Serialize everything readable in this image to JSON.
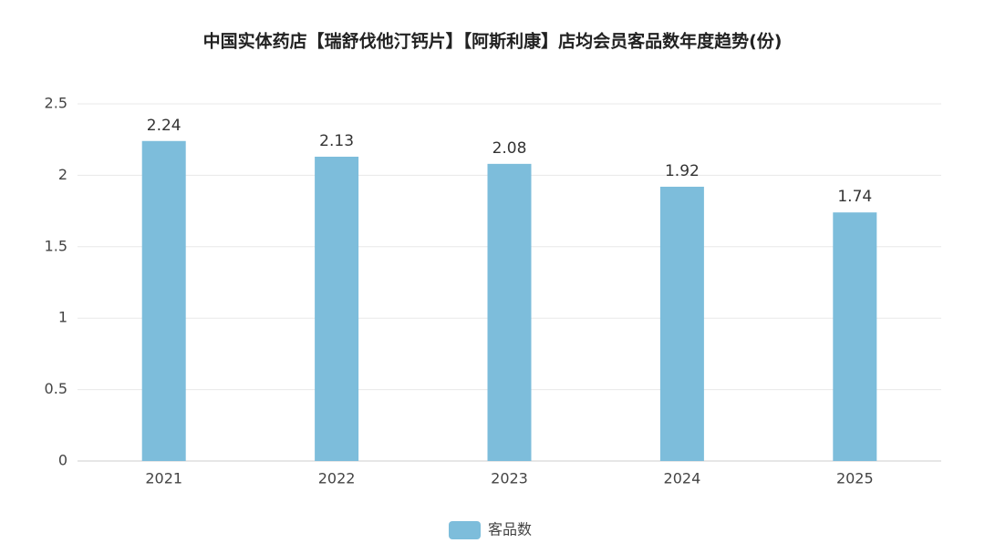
{
  "chart_data": {
    "type": "bar",
    "title": "中国实体药店【瑞舒伐他汀钙片】【阿斯利康】店均会员客品数年度趋势(份)",
    "categories": [
      "2021",
      "2022",
      "2023",
      "2024",
      "2025"
    ],
    "series": [
      {
        "name": "客品数",
        "color": "#7dbddb",
        "values": [
          2.24,
          2.13,
          2.08,
          1.92,
          1.74
        ]
      }
    ],
    "ylim": [
      0,
      2.5
    ],
    "yticks": [
      0,
      0.5,
      1,
      1.5,
      2,
      2.5
    ],
    "grid": true,
    "legend": "bottom"
  }
}
